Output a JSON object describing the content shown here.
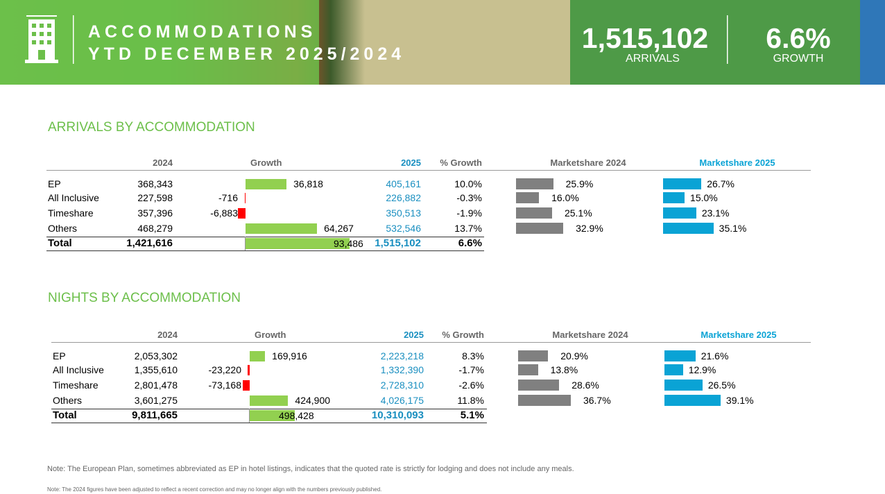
{
  "header": {
    "title_line1": "ACCOMMODATIONS",
    "title_line2": "YTD DECEMBER 2025/2024",
    "arrivals_value": "1,515,102",
    "arrivals_label": "ARRIVALS",
    "growth_value": "6.6%",
    "growth_label": "GROWTH"
  },
  "arrivals": {
    "title": "ARRIVALS BY ACCOMMODATION",
    "headers": {
      "y2024": "2024",
      "growth": "Growth",
      "y2025": "2025",
      "pct_growth": "% Growth",
      "share2024": "Marketshare 2024",
      "share2025": "Marketshare 2025"
    },
    "rows": [
      {
        "name": "EP",
        "y2024": "368,343",
        "growth": {
          "value": 36818,
          "label": "36,818"
        },
        "y2025": "405,161",
        "pct_growth": "10.0%",
        "share2024": {
          "value": 25.9,
          "label": "25.9%"
        },
        "share2025": {
          "value": 26.7,
          "label": "26.7%"
        }
      },
      {
        "name": "All Inclusive",
        "y2024": "227,598",
        "growth": {
          "value": -716,
          "label": "-716"
        },
        "y2025": "226,882",
        "pct_growth": "-0.3%",
        "share2024": {
          "value": 16.0,
          "label": "16.0%"
        },
        "share2025": {
          "value": 15.0,
          "label": "15.0%"
        }
      },
      {
        "name": "Timeshare",
        "y2024": "357,396",
        "growth": {
          "value": -6883,
          "label": "-6,883"
        },
        "y2025": "350,513",
        "pct_growth": "-1.9%",
        "share2024": {
          "value": 25.1,
          "label": "25.1%"
        },
        "share2025": {
          "value": 23.1,
          "label": "23.1%"
        }
      },
      {
        "name": "Others",
        "y2024": "468,279",
        "growth": {
          "value": 64267,
          "label": "64,267"
        },
        "y2025": "532,546",
        "pct_growth": "13.7%",
        "share2024": {
          "value": 32.9,
          "label": "32.9%"
        },
        "share2025": {
          "value": 35.1,
          "label": "35.1%"
        }
      }
    ],
    "total": {
      "name": "Total",
      "y2024": "1,421,616",
      "growth": {
        "value": 93486,
        "label": "93,486"
      },
      "y2025": "1,515,102",
      "pct_growth": "6.6%"
    }
  },
  "nights": {
    "title": "NIGHTS BY ACCOMMODATION",
    "headers": {
      "y2024": "2024",
      "growth": "Growth",
      "y2025": "2025",
      "pct_growth": "% Growth",
      "share2024": "Marketshare 2024",
      "share2025": "Marketshare 2025"
    },
    "rows": [
      {
        "name": "EP",
        "y2024": "2,053,302",
        "growth": {
          "value": 169916,
          "label": "169,916"
        },
        "y2025": "2,223,218",
        "pct_growth": "8.3%",
        "share2024": {
          "value": 20.9,
          "label": "20.9%"
        },
        "share2025": {
          "value": 21.6,
          "label": "21.6%"
        }
      },
      {
        "name": "All Inclusive",
        "y2024": "1,355,610",
        "growth": {
          "value": -23220,
          "label": "-23,220"
        },
        "y2025": "1,332,390",
        "pct_growth": "-1.7%",
        "share2024": {
          "value": 13.8,
          "label": "13.8%"
        },
        "share2025": {
          "value": 12.9,
          "label": "12.9%"
        }
      },
      {
        "name": "Timeshare",
        "y2024": "2,801,478",
        "growth": {
          "value": -73168,
          "label": "-73,168"
        },
        "y2025": "2,728,310",
        "pct_growth": "-2.6%",
        "share2024": {
          "value": 28.6,
          "label": "28.6%"
        },
        "share2025": {
          "value": 26.5,
          "label": "26.5%"
        }
      },
      {
        "name": "Others",
        "y2024": "3,601,275",
        "growth": {
          "value": 424900,
          "label": "424,900"
        },
        "y2025": "4,026,175",
        "pct_growth": "11.8%",
        "share2024": {
          "value": 36.7,
          "label": "36.7%"
        },
        "share2025": {
          "value": 39.1,
          "label": "39.1%"
        }
      }
    ],
    "total": {
      "name": "Total",
      "y2024": "9,811,665",
      "growth": {
        "value": 498428,
        "label": "498,428"
      },
      "y2025": "10,310,093",
      "pct_growth": "5.1%"
    }
  },
  "notes": {
    "note1": "Note: The European Plan, sometimes abbreviated as EP in hotel listings, indicates that the quoted rate is strictly for lodging and does not include any meals.",
    "note2": "Note: The 2024 figures have been adjusted to reflect a recent correction and may no longer align with the numbers previously published."
  }
}
